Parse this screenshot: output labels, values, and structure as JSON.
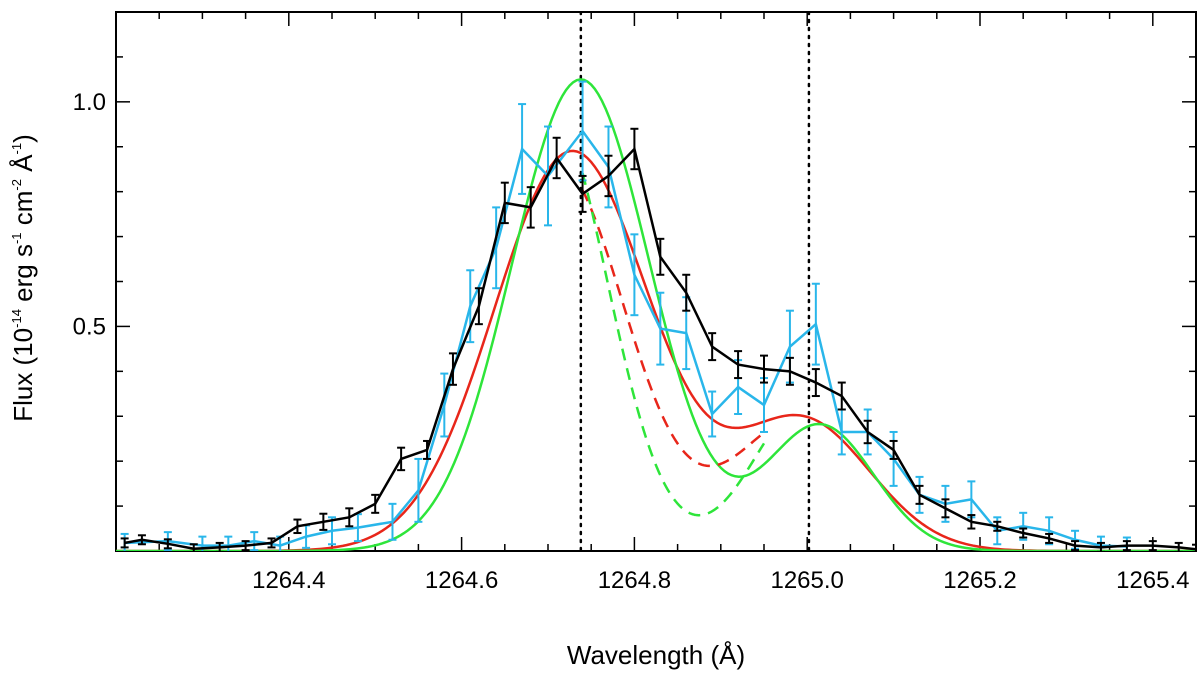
{
  "chart_data": {
    "type": "line",
    "title": "",
    "xlabel": "Wavelength (Å)",
    "ylabel": {
      "prefix": "Flux (10",
      "exp1": "-14",
      "unit1": " erg s",
      "exp2": "-1",
      "unit2": " cm",
      "exp3": "-2",
      "unit3": " Å",
      "exp4": "-1",
      "suffix": ")"
    },
    "xlim": [
      1264.2,
      1265.45
    ],
    "ylim": [
      0.0,
      1.2
    ],
    "x_ticks": [
      1264.4,
      1264.6,
      1264.8,
      1265.0,
      1265.2,
      1265.4
    ],
    "x_tick_labels": [
      "1264.4",
      "1264.6",
      "1264.8",
      "1265.0",
      "1265.2",
      "1265.4"
    ],
    "x_minor_step": 0.05,
    "y_ticks": [
      0.5,
      1.0
    ],
    "y_tick_labels": [
      "0.5",
      "1.0"
    ],
    "y_minor_step": 0.1,
    "vertical_lines": [
      1264.738,
      1265.002
    ],
    "series": [
      {
        "name": "black data",
        "color": "#000000",
        "x": [
          1264.21,
          1264.23,
          1264.26,
          1264.29,
          1264.32,
          1264.35,
          1264.38,
          1264.41,
          1264.44,
          1264.47,
          1264.5,
          1264.53,
          1264.56,
          1264.59,
          1264.62,
          1264.65,
          1264.68,
          1264.71,
          1264.74,
          1264.77,
          1264.8,
          1264.83,
          1264.86,
          1264.89,
          1264.92,
          1264.95,
          1264.98,
          1265.01,
          1265.04,
          1265.07,
          1265.1,
          1265.13,
          1265.16,
          1265.19,
          1265.22,
          1265.25,
          1265.28,
          1265.31,
          1265.34,
          1265.37,
          1265.4,
          1265.43,
          1265.45
        ],
        "y": [
          0.018,
          0.025,
          0.016,
          0.005,
          0.008,
          0.012,
          0.018,
          0.055,
          0.065,
          0.075,
          0.105,
          0.205,
          0.225,
          0.405,
          0.545,
          0.775,
          0.765,
          0.875,
          0.795,
          0.835,
          0.895,
          0.655,
          0.575,
          0.455,
          0.415,
          0.405,
          0.4,
          0.375,
          0.345,
          0.265,
          0.225,
          0.125,
          0.095,
          0.065,
          0.055,
          0.04,
          0.028,
          0.012,
          0.008,
          0.012,
          0.012,
          0.008,
          0.004
        ],
        "err": [
          0.01,
          0.01,
          0.01,
          0.01,
          0.01,
          0.01,
          0.01,
          0.015,
          0.018,
          0.02,
          0.02,
          0.025,
          0.02,
          0.035,
          0.04,
          0.045,
          0.045,
          0.045,
          0.04,
          0.045,
          0.045,
          0.04,
          0.04,
          0.03,
          0.03,
          0.03,
          0.03,
          0.03,
          0.03,
          0.025,
          0.02,
          0.02,
          0.02,
          0.015,
          0.01,
          0.01,
          0.01,
          0.01,
          0.01,
          0.01,
          0.01,
          0.01,
          0.01
        ]
      },
      {
        "name": "blue data",
        "color": "#29b6ea",
        "x": [
          1264.21,
          1264.26,
          1264.3,
          1264.33,
          1264.36,
          1264.39,
          1264.42,
          1264.45,
          1264.48,
          1264.52,
          1264.55,
          1264.58,
          1264.61,
          1264.64,
          1264.67,
          1264.7,
          1264.74,
          1264.77,
          1264.8,
          1264.83,
          1264.86,
          1264.89,
          1264.92,
          1264.95,
          1264.98,
          1265.01,
          1265.04,
          1265.07,
          1265.1,
          1265.13,
          1265.16,
          1265.19,
          1265.22,
          1265.25,
          1265.28,
          1265.31,
          1265.34,
          1265.37
        ],
        "y": [
          0.018,
          0.022,
          0.012,
          0.012,
          0.022,
          0.012,
          0.032,
          0.045,
          0.052,
          0.065,
          0.135,
          0.325,
          0.545,
          0.675,
          0.895,
          0.835,
          0.935,
          0.855,
          0.615,
          0.495,
          0.485,
          0.305,
          0.365,
          0.325,
          0.455,
          0.505,
          0.265,
          0.265,
          0.205,
          0.125,
          0.105,
          0.115,
          0.045,
          0.055,
          0.045,
          0.025,
          0.012,
          0.01
        ],
        "err": [
          0.02,
          0.02,
          0.02,
          0.02,
          0.02,
          0.02,
          0.025,
          0.03,
          0.03,
          0.04,
          0.07,
          0.07,
          0.08,
          0.09,
          0.1,
          0.11,
          0.11,
          0.09,
          0.09,
          0.08,
          0.08,
          0.05,
          0.06,
          0.06,
          0.08,
          0.09,
          0.05,
          0.05,
          0.06,
          0.04,
          0.04,
          0.04,
          0.03,
          0.03,
          0.03,
          0.02,
          0.02,
          0.02
        ]
      },
      {
        "name": "red model",
        "color": "#e8261a",
        "dashed": false,
        "components": [
          {
            "amp": 0.89,
            "center": 1264.728,
            "sigma": 0.09
          },
          {
            "amp": 0.29,
            "center": 1264.995,
            "sigma": 0.078
          }
        ]
      },
      {
        "name": "green model",
        "color": "#2ee53a",
        "dashed": false,
        "components": [
          {
            "amp": 1.05,
            "center": 1264.738,
            "sigma": 0.08
          },
          {
            "amp": 0.28,
            "center": 1265.015,
            "sigma": 0.062
          }
        ]
      },
      {
        "name": "red dashed model",
        "color": "#e8261a",
        "dashed": true,
        "x_range": [
          1264.74,
          1264.95
        ],
        "components": [
          {
            "amp": 0.86,
            "center": 1264.71,
            "sigma": 0.08
          },
          {
            "amp": 0.3,
            "center": 1264.995,
            "sigma": 0.078
          }
        ]
      },
      {
        "name": "green dashed model",
        "color": "#2ee53a",
        "dashed": true,
        "x_range": [
          1264.74,
          1264.95
        ],
        "components": [
          {
            "amp": 1.0,
            "center": 1264.7,
            "sigma": 0.068
          },
          {
            "amp": 0.33,
            "center": 1265.0,
            "sigma": 0.062
          }
        ]
      }
    ]
  }
}
